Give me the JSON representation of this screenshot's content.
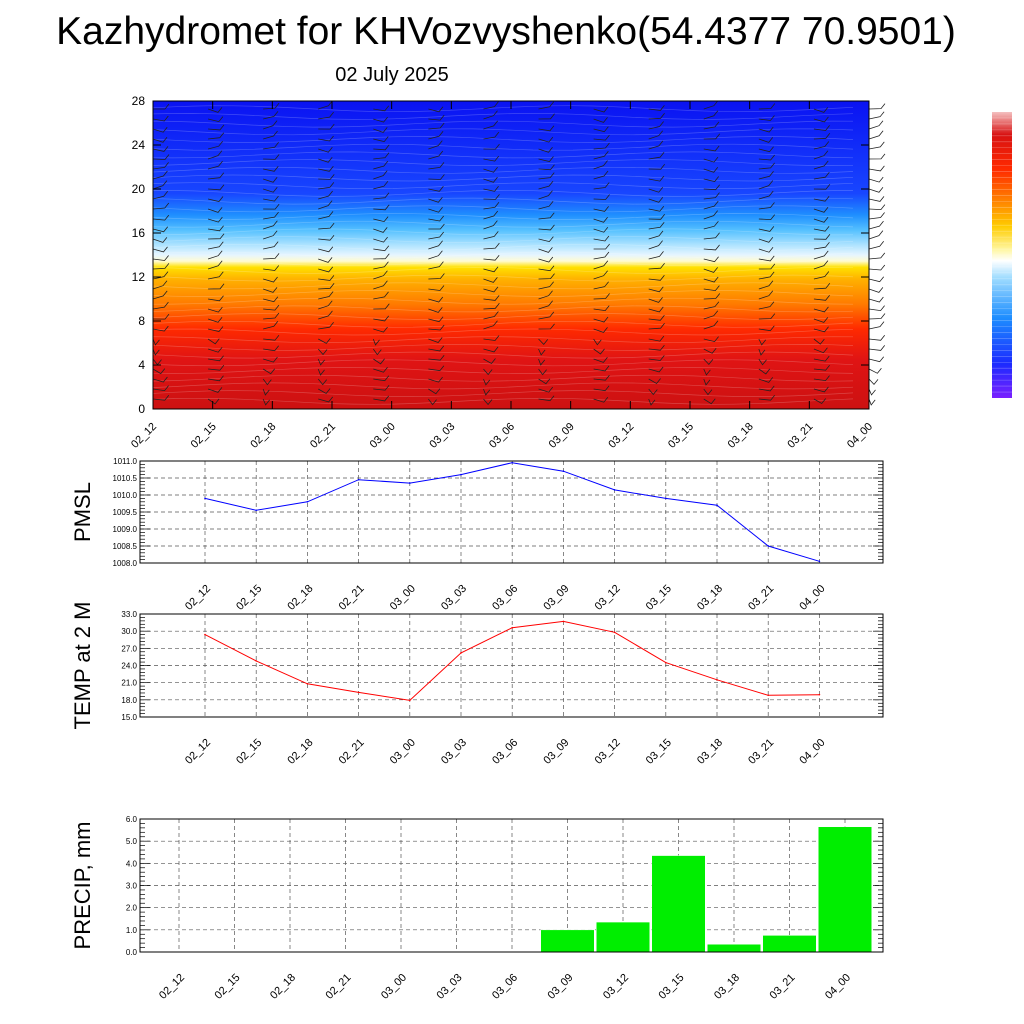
{
  "title": "Kazhydromet for KHVozvyshenko(54.4377 70.9501)",
  "date": "02 July 2025",
  "colors": {
    "pmsl_line": "#0000ff",
    "temp_line": "#ff0000",
    "precip_bar": "#00ee00"
  },
  "chart_data": [
    {
      "type": "heatmap",
      "title": "",
      "categories": [
        "02_12",
        "02_15",
        "02_18",
        "02_21",
        "03_00",
        "03_03",
        "03_06",
        "03_09",
        "03_12",
        "03_15",
        "03_18",
        "03_21",
        "04_00"
      ],
      "y_ticks": [
        0,
        4,
        8,
        12,
        16,
        20,
        24,
        28
      ],
      "ylim": [
        0,
        28
      ],
      "colorbar": true
    },
    {
      "type": "line",
      "ylabel": "PMSL",
      "categories": [
        "02_12",
        "02_15",
        "02_18",
        "02_21",
        "03_00",
        "03_03",
        "03_06",
        "03_09",
        "03_12",
        "03_15",
        "03_18",
        "03_21",
        "04_00"
      ],
      "y_ticks": [
        "1008.0",
        "1008.5",
        "1009.0",
        "1009.5",
        "1010.0",
        "1010.5",
        "1011.0"
      ],
      "ylim": [
        1008.0,
        1011.0
      ],
      "grid": true,
      "values": [
        1009.9,
        1009.55,
        1009.8,
        1010.45,
        1010.35,
        1010.6,
        1010.95,
        1010.7,
        1010.15,
        1009.9,
        1009.7,
        1008.5,
        1008.05
      ]
    },
    {
      "type": "line",
      "ylabel": "TEMP at 2 M",
      "categories": [
        "02_12",
        "02_15",
        "02_18",
        "02_21",
        "03_00",
        "03_03",
        "03_06",
        "03_09",
        "03_12",
        "03_15",
        "03_18",
        "03_21",
        "04_00"
      ],
      "y_ticks": [
        "15.0",
        "18.0",
        "21.0",
        "24.0",
        "27.0",
        "30.0",
        "33.0"
      ],
      "ylim": [
        15.0,
        33.0
      ],
      "grid": true,
      "values": [
        29.4,
        24.8,
        20.8,
        19.3,
        17.9,
        26.2,
        30.6,
        31.7,
        29.8,
        24.5,
        21.5,
        18.8,
        18.9
      ]
    },
    {
      "type": "bar",
      "ylabel": "PRECIP, mm",
      "categories": [
        "02_12",
        "02_15",
        "02_18",
        "02_21",
        "03_00",
        "03_03",
        "03_06",
        "03_09",
        "03_12",
        "03_15",
        "03_18",
        "03_21",
        "04_00"
      ],
      "y_ticks": [
        "0.0",
        "1.0",
        "2.0",
        "3.0",
        "4.0",
        "5.0",
        "6.0"
      ],
      "ylim": [
        0.0,
        6.0
      ],
      "grid": true,
      "values": [
        0,
        0,
        0,
        0,
        0,
        0,
        0,
        1.0,
        1.35,
        4.35,
        0.35,
        0.75,
        5.65
      ]
    }
  ]
}
